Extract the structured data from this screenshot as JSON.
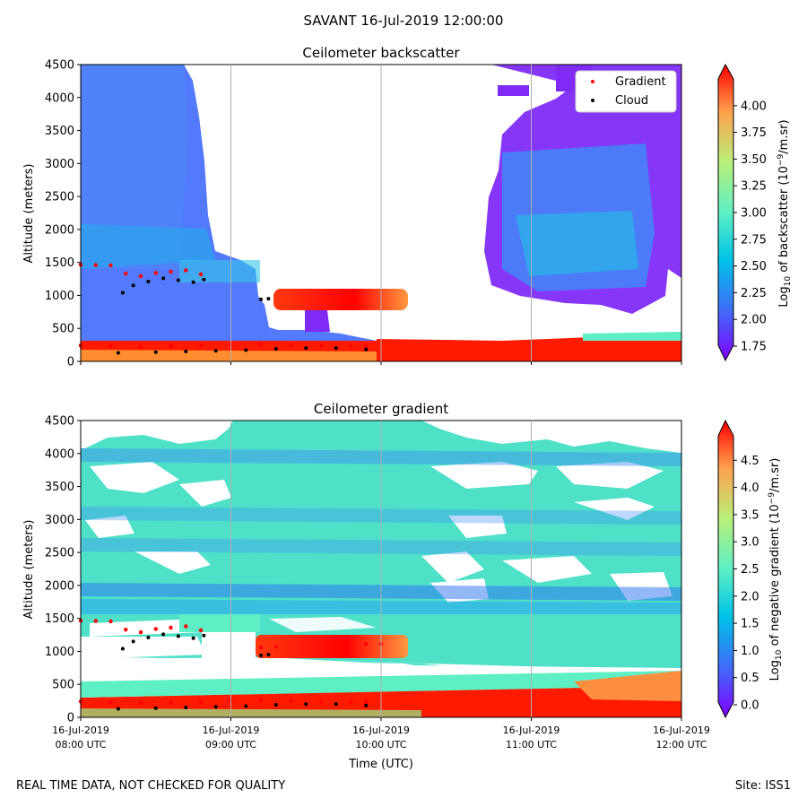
{
  "figure": {
    "suptitle": "SAVANT 16-Jul-2019 12:00:00",
    "footer_left": "REAL TIME DATA, NOT CHECKED FOR QUALITY",
    "footer_right": "Site: ISS1",
    "xlabel": "Time (UTC)",
    "x_ticks": [
      {
        "date": "16-Jul-2019",
        "time": "08:00 UTC"
      },
      {
        "date": "16-Jul-2019",
        "time": "09:00 UTC"
      },
      {
        "date": "16-Jul-2019",
        "time": "10:00 UTC"
      },
      {
        "date": "16-Jul-2019",
        "time": "11:00 UTC"
      },
      {
        "date": "16-Jul-2019",
        "time": "12:00 UTC"
      }
    ],
    "legend": [
      {
        "label": "Gradient",
        "color": "#ff0000"
      },
      {
        "label": "Cloud",
        "color": "#000000"
      }
    ]
  },
  "chart_data": [
    {
      "type": "heatmap",
      "title": "Ceilometer backscatter",
      "ylabel": "Altitude (meters)",
      "xlim": [
        8.0,
        12.0
      ],
      "ylim": [
        0,
        4500
      ],
      "y_ticks": [
        0,
        500,
        1000,
        1500,
        2000,
        2500,
        3000,
        3500,
        4000,
        4500
      ],
      "colorbar": {
        "label": "Log10 of backscatter (10^-9/m.sr)",
        "range": [
          1.75,
          4.25
        ],
        "ticks": [
          "1.75",
          "2.00",
          "2.25",
          "2.50",
          "2.75",
          "3.00",
          "3.25",
          "3.50",
          "3.75",
          "4.00"
        ]
      },
      "gradient_points": [
        [
          8.0,
          1465
        ],
        [
          8.1,
          1460
        ],
        [
          8.2,
          1455
        ],
        [
          8.3,
          1330
        ],
        [
          8.4,
          1290
        ],
        [
          8.5,
          1340
        ],
        [
          8.6,
          1360
        ],
        [
          8.7,
          1380
        ],
        [
          8.8,
          1320
        ],
        [
          8.0,
          240
        ],
        [
          8.2,
          230
        ],
        [
          8.4,
          220
        ],
        [
          8.6,
          230
        ],
        [
          8.8,
          240
        ],
        [
          9.0,
          250
        ],
        [
          9.2,
          260
        ],
        [
          9.4,
          250
        ],
        [
          9.6,
          240
        ],
        [
          9.8,
          230
        ],
        [
          9.9,
          230
        ]
      ],
      "cloud_points": [
        [
          8.28,
          1040
        ],
        [
          8.35,
          1150
        ],
        [
          8.45,
          1210
        ],
        [
          8.55,
          1260
        ],
        [
          8.65,
          1230
        ],
        [
          8.75,
          1200
        ],
        [
          8.82,
          1240
        ],
        [
          9.2,
          940
        ],
        [
          9.25,
          950
        ],
        [
          8.25,
          130
        ],
        [
          8.5,
          140
        ],
        [
          8.7,
          150
        ],
        [
          8.9,
          160
        ],
        [
          9.1,
          170
        ],
        [
          9.3,
          190
        ],
        [
          9.5,
          200
        ],
        [
          9.7,
          200
        ],
        [
          9.9,
          180
        ]
      ]
    },
    {
      "type": "heatmap",
      "title": "Ceilometer gradient",
      "ylabel": "Altitude (meters)",
      "xlim": [
        8.0,
        12.0
      ],
      "ylim": [
        0,
        4500
      ],
      "y_ticks": [
        0,
        500,
        1000,
        1500,
        2000,
        2500,
        3000,
        3500,
        4000,
        4500
      ],
      "colorbar": {
        "label": "Log10 of negative gradient (10^-9/m.sr)",
        "range": [
          0.0,
          5.0
        ],
        "ticks": [
          "0.0",
          "0.5",
          "1.0",
          "1.5",
          "2.0",
          "2.5",
          "3.0",
          "3.5",
          "4.0",
          "4.5"
        ]
      },
      "gradient_points": [
        [
          8.0,
          1465
        ],
        [
          8.1,
          1460
        ],
        [
          8.2,
          1455
        ],
        [
          8.3,
          1330
        ],
        [
          8.4,
          1290
        ],
        [
          8.5,
          1340
        ],
        [
          8.6,
          1360
        ],
        [
          8.7,
          1380
        ],
        [
          8.8,
          1320
        ],
        [
          9.2,
          1060
        ],
        [
          9.3,
          1070
        ],
        [
          9.9,
          1110
        ],
        [
          10.0,
          1110
        ],
        [
          8.0,
          240
        ],
        [
          8.2,
          230
        ],
        [
          8.4,
          220
        ],
        [
          8.6,
          230
        ],
        [
          8.8,
          240
        ],
        [
          9.0,
          250
        ],
        [
          9.2,
          260
        ],
        [
          9.4,
          250
        ],
        [
          9.6,
          240
        ],
        [
          9.8,
          230
        ],
        [
          9.9,
          230
        ]
      ],
      "cloud_points": [
        [
          8.28,
          1040
        ],
        [
          8.35,
          1150
        ],
        [
          8.45,
          1210
        ],
        [
          8.55,
          1260
        ],
        [
          8.65,
          1230
        ],
        [
          8.75,
          1200
        ],
        [
          8.82,
          1240
        ],
        [
          9.2,
          940
        ],
        [
          9.25,
          950
        ],
        [
          8.25,
          130
        ],
        [
          8.5,
          140
        ],
        [
          8.7,
          150
        ],
        [
          8.9,
          160
        ],
        [
          9.1,
          170
        ],
        [
          9.3,
          190
        ],
        [
          9.5,
          200
        ],
        [
          9.7,
          200
        ],
        [
          9.9,
          180
        ]
      ]
    }
  ]
}
